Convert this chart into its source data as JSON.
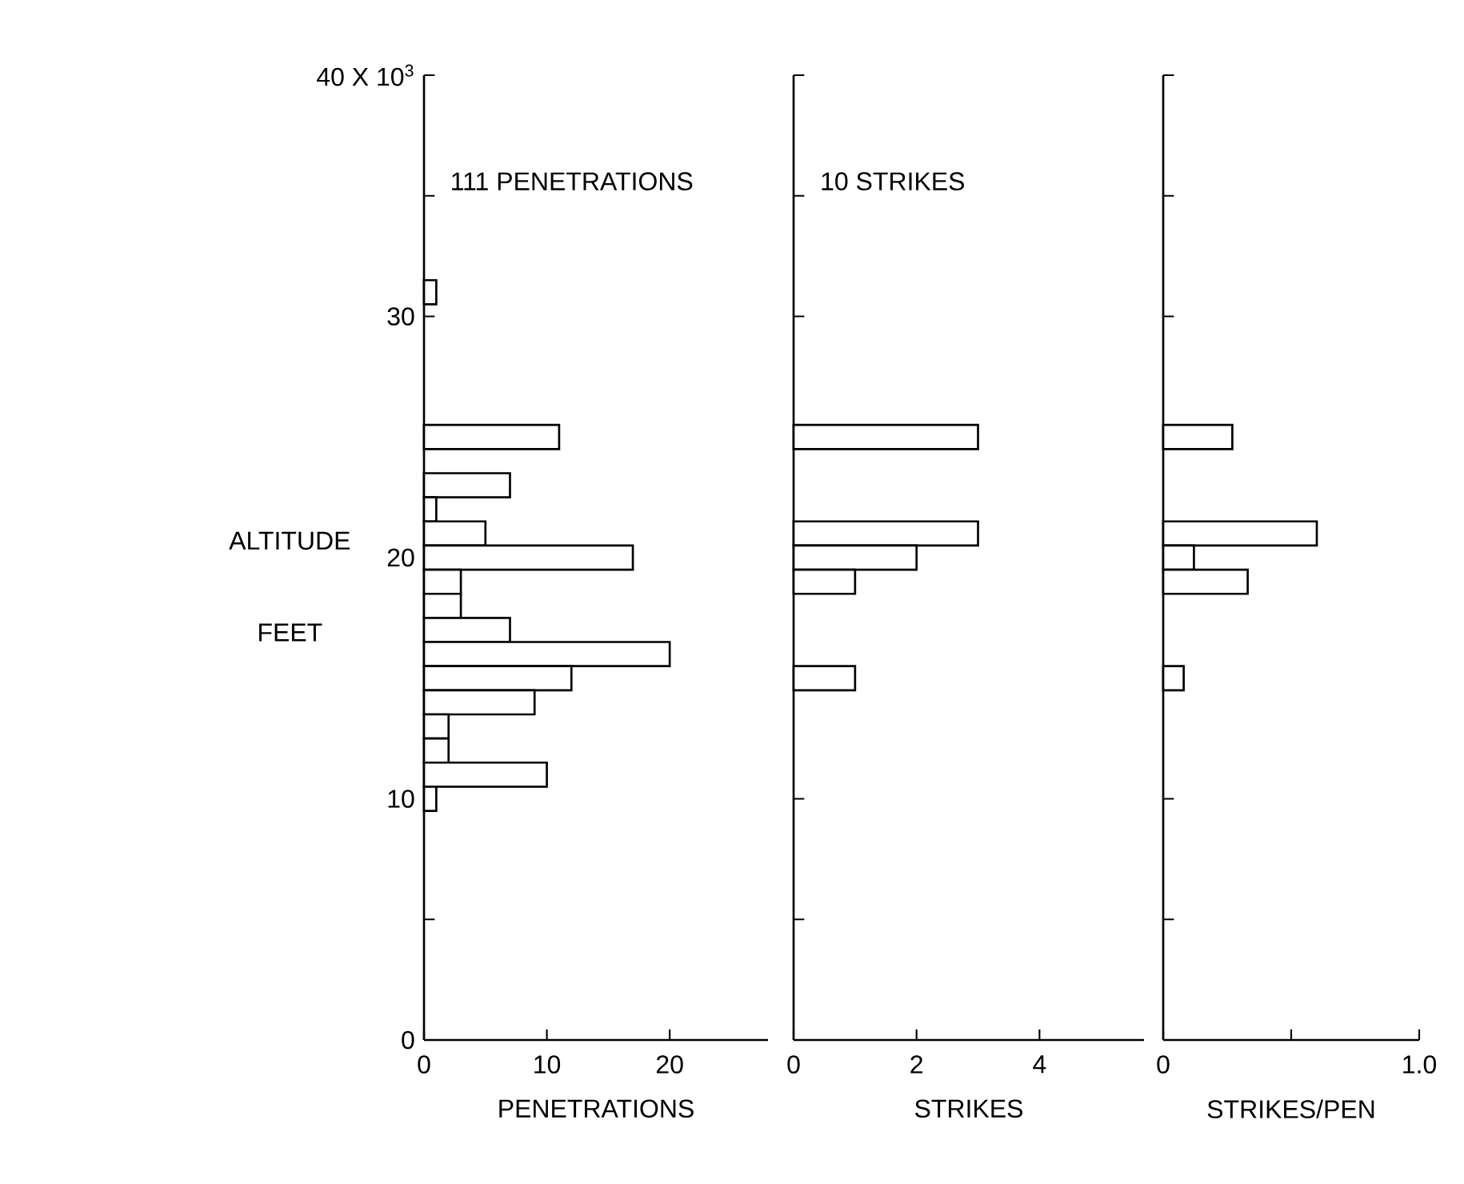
{
  "chart_data": [
    {
      "type": "bar",
      "orientation": "horizontal",
      "title": "111 PENETRATIONS",
      "xlabel": "PENETRATIONS",
      "ylabel": "ALTITUDE FEET",
      "x": [
        31,
        25,
        23,
        22,
        21,
        20,
        19,
        18,
        17,
        16,
        15,
        14,
        13,
        12,
        11,
        10
      ],
      "values": [
        1,
        11,
        7,
        1,
        5,
        17,
        3,
        3,
        7,
        20,
        12,
        9,
        2,
        2,
        10,
        1
      ],
      "color": "#000000",
      "xlim": [
        0,
        28
      ],
      "xticks": [
        0,
        10,
        20
      ],
      "ylim": [
        0,
        40
      ],
      "yticks": [
        0,
        {
          "value": 5,
          "label": null
        },
        10,
        {
          "value": 15,
          "label": null
        },
        20,
        {
          "value": 25,
          "label": null
        },
        30,
        {
          "value": 35,
          "label": null
        },
        {
          "value": 40,
          "label": "40 X 10$^{3}$"
        }
      ]
    },
    {
      "type": "bar",
      "orientation": "horizontal",
      "title": "10 STRIKES",
      "xlabel": "STRIKES",
      "x": [
        25,
        21,
        20,
        19,
        15
      ],
      "values": [
        3,
        3,
        2,
        1,
        1
      ],
      "color": "#000000",
      "xlim": [
        0,
        5.7
      ],
      "xticks": [
        0,
        2,
        4
      ],
      "ylim": [
        0,
        40
      ],
      "yticks": [
        0,
        5,
        10,
        15,
        20,
        25,
        30,
        35,
        40
      ],
      "tick_labels": "x"
    },
    {
      "type": "bar",
      "orientation": "horizontal",
      "xlabel": "STRIKES/PEN",
      "x": [
        25,
        21,
        20,
        19,
        15
      ],
      "values": [
        0.27,
        0.6,
        0.12,
        0.33,
        0.08
      ],
      "color": "#000000",
      "xlim": [
        0,
        1.0
      ],
      "xticks": [
        0,
        {
          "value": 0.5,
          "label": null
        },
        {
          "value": 1.0,
          "label": "1.0"
        }
      ],
      "ylim": [
        0,
        40
      ],
      "yticks": [
        0,
        5,
        10,
        15,
        20,
        25,
        30,
        35,
        40
      ],
      "tick_labels": "x"
    }
  ]
}
